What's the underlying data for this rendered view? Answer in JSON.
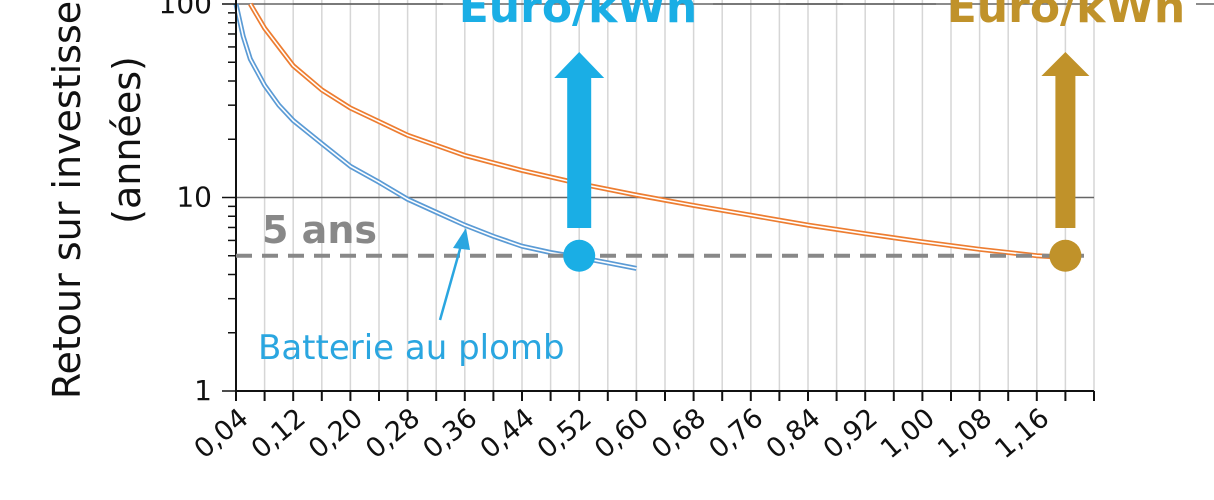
{
  "chart_data": {
    "type": "line",
    "ylabel": "Retour sur investisse",
    "ylabel2": "(années)",
    "yscale": "log",
    "ylim": [
      1,
      100
    ],
    "y_ticks": [
      "1",
      "10",
      "100"
    ],
    "xlim": [
      0.04,
      1.24
    ],
    "x_ticks": [
      "0,04",
      "0,12",
      "0,20",
      "0,28",
      "0,36",
      "0,44",
      "0,52",
      "0,60",
      "0,68",
      "0,76",
      "0,84",
      "0,92",
      "1,00",
      "1,08",
      "1,16"
    ],
    "grid": "vertical",
    "series": [
      {
        "name": "Batterie au plomb",
        "color": "#5b9bd5",
        "x": [
          0.04,
          0.05,
          0.06,
          0.08,
          0.1,
          0.12,
          0.16,
          0.2,
          0.24,
          0.28,
          0.32,
          0.36,
          0.4,
          0.44,
          0.48,
          0.52,
          0.56,
          0.6
        ],
        "y": [
          100,
          68,
          52,
          38,
          30,
          25,
          19,
          14.5,
          12,
          9.8,
          8.4,
          7.2,
          6.3,
          5.6,
          5.2,
          4.9,
          4.6,
          4.3
        ]
      },
      {
        "name": "",
        "color": "#ed7d31",
        "x": [
          0.06,
          0.08,
          0.12,
          0.16,
          0.2,
          0.28,
          0.36,
          0.44,
          0.52,
          0.6,
          0.68,
          0.76,
          0.84,
          0.92,
          1.0,
          1.08,
          1.16,
          1.2
        ],
        "y": [
          100,
          75,
          48,
          36,
          29,
          21,
          16.5,
          13.8,
          11.8,
          10.3,
          9.1,
          8.1,
          7.2,
          6.5,
          5.9,
          5.4,
          5.0,
          4.9
        ]
      }
    ],
    "reference_line": {
      "y": 5,
      "label": "5 ans",
      "color": "#888888"
    },
    "annotations": [
      {
        "text": "Euro/kWh",
        "color": "#1aaee5",
        "x": 0.52
      },
      {
        "text": "Euro/kWh",
        "color": "#c0922a",
        "x": 1.2
      }
    ],
    "markers": [
      {
        "x": 0.52,
        "y": 5,
        "color": "#1aaee5"
      },
      {
        "x": 1.2,
        "y": 5,
        "color": "#c0922a"
      }
    ],
    "callout": {
      "text": "Batterie au plomb",
      "color": "#2aa6e0"
    }
  }
}
